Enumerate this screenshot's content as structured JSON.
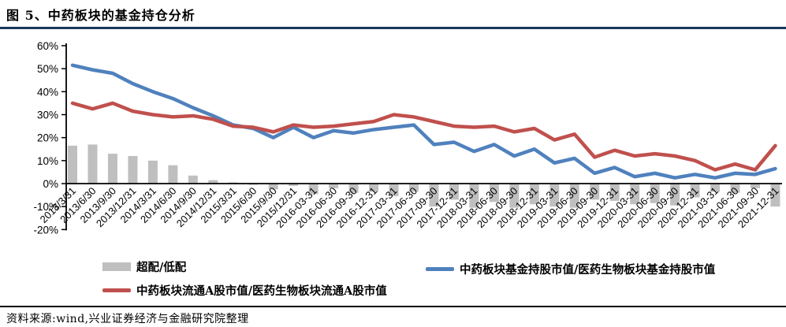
{
  "header": {
    "title": "图 5、中药板块的基金持仓分析"
  },
  "footer": {
    "source": "资料来源:wind,兴业证券经济与金融研究院整理"
  },
  "colors": {
    "bar": "#BFBFBF",
    "blue_line": "#4F81BD",
    "red_line": "#C0504D",
    "title_rule": "#17365D",
    "axis": "#000000"
  },
  "chart_data": {
    "type": "bar",
    "subtype": "bar+line combo, quarterly time series",
    "title": "",
    "xlabel": "",
    "ylabel": "",
    "ylim": [
      -20,
      60
    ],
    "ytick_labels": [
      "60%",
      "50%",
      "40%",
      "30%",
      "20%",
      "10%",
      "0%",
      "-10%",
      "-20%"
    ],
    "grid": false,
    "legend_position": "bottom",
    "categories": [
      "2013/3/31",
      "2013/6/30",
      "2013/9/30",
      "2013/12/31",
      "2014/3/31",
      "2014/6/30",
      "2014/9/30",
      "2014/12/31",
      "2015/3/31",
      "2015/6/30",
      "2015/9/30",
      "2015/12/31",
      "2016-03-31",
      "2016-06-30",
      "2016-09-30",
      "2016-12-31",
      "2017-03-31",
      "2017-06-30",
      "2017-09-30",
      "2017-12-31",
      "2018-03-31",
      "2018-06-30",
      "2018-09-30",
      "2018-12-31",
      "2019-03-31",
      "2019-06-30",
      "2019-09-30",
      "2019-12-31",
      "2020-03-31",
      "2020-06-30",
      "2020-09-30",
      "2020-12-31",
      "2021-03-31",
      "2021-06-30",
      "2021-09-30",
      "2021-12-31"
    ],
    "series": [
      {
        "name": "超配/低配",
        "type": "bar",
        "color": "#BFBFBF",
        "values": [
          16.5,
          17,
          13,
          12,
          10,
          8,
          3.5,
          1.5,
          0.5,
          -0.5,
          -2.5,
          -1,
          -4.5,
          -2,
          -4,
          -3.5,
          -5.5,
          -3.5,
          -10,
          -7,
          -10.5,
          -8,
          -10.5,
          -9,
          -10,
          -10.5,
          -7,
          -7.5,
          -9,
          -8.5,
          -9.5,
          -6,
          -3.5,
          -4,
          -2,
          -10
        ]
      },
      {
        "name": "中药板块基金持股市值/医药生物板块基金持股市值",
        "type": "line",
        "color": "#4F81BD",
        "values": [
          51.5,
          49.5,
          48,
          43.5,
          40,
          37,
          33,
          29.5,
          25.5,
          24,
          20,
          24.5,
          20,
          23,
          22,
          23.5,
          24.5,
          25.5,
          17,
          18,
          14,
          17,
          12,
          15,
          9,
          11,
          4.5,
          7,
          3,
          4.5,
          2.5,
          4,
          2.5,
          4.5,
          4,
          6.5
        ]
      },
      {
        "name": "中药板块流通A股市值/医药生物板块流通A股市值",
        "type": "line",
        "color": "#C0504D",
        "values": [
          35,
          32.5,
          35,
          31.5,
          30,
          29,
          29.5,
          28,
          25,
          24.5,
          22.5,
          25.5,
          24.5,
          25,
          26,
          27,
          30,
          29,
          27,
          25,
          24.5,
          25,
          22.5,
          24,
          19,
          21.5,
          11.5,
          14.5,
          12,
          13,
          12,
          10,
          6,
          8.5,
          6,
          16.5
        ]
      }
    ]
  }
}
